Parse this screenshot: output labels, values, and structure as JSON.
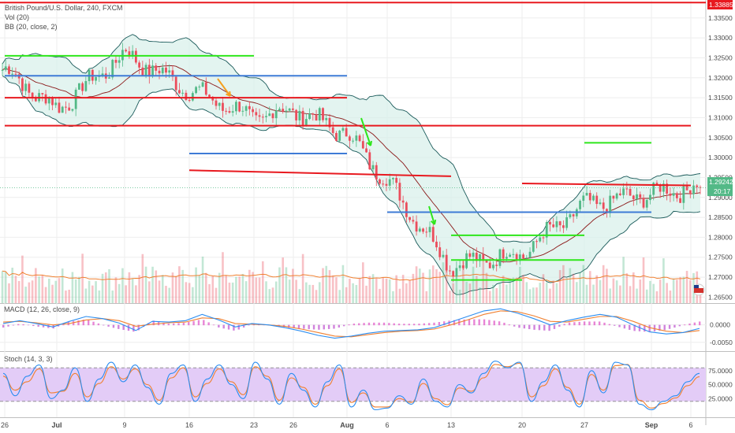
{
  "header": {
    "title": "British Pound/U.S. Dollar, 240, FXCM",
    "vol": "Vol (20)",
    "bb": "BB (20, close, 2)"
  },
  "macd_label": "MACD (12, 26, close, 9)",
  "stoch_label": "Stoch (14, 3, 3)",
  "price_tag": "1.29242",
  "time_tag": "20:17",
  "top_tag": "1.33885",
  "colors": {
    "up": "#53b987",
    "down": "#eb4d5c",
    "bb": "#1a5a5a",
    "bbfill": "#d7f0ea",
    "red_line": "#e8191f",
    "green_line": "#2ee61b",
    "blue_line": "#3e7bd6",
    "orange_arrow": "#f5a020",
    "green_arrow": "#2ee61b",
    "macd": "#2b8df0",
    "signal": "#f08030",
    "stoch_fill": "#e3ccf7",
    "grid": "#eeeeee"
  },
  "chart_data": [
    {
      "type": "candlestick",
      "title": "British Pound/U.S. Dollar, 240, FXCM",
      "x_labels": [
        "26",
        "Jul",
        "9",
        "16",
        "23",
        "26",
        "Aug",
        "6",
        "13",
        "20",
        "27",
        "Sep",
        "6"
      ],
      "y_ticks": [
        "1.33500",
        "1.33000",
        "1.32500",
        "1.32000",
        "1.31500",
        "1.31000",
        "1.30500",
        "1.30000",
        "1.29500",
        "1.29000",
        "1.28500",
        "1.28000",
        "1.27500",
        "1.27000",
        "1.26500"
      ],
      "ylim": [
        1.2635,
        1.3395
      ],
      "last_price": 1.29242,
      "horizontal_lines": [
        {
          "color": "red",
          "y": 1.33885
        },
        {
          "color": "green",
          "y": 1.3255,
          "x_from": "26",
          "x_to": "23"
        },
        {
          "color": "red",
          "y": 1.315,
          "x_from": "26",
          "x_to": "Aug"
        },
        {
          "color": "red",
          "y": 1.308,
          "x_from": "26",
          "x_to": "6"
        },
        {
          "color": "blue",
          "y": 1.3205,
          "x_from": "26",
          "x_to": "Aug"
        },
        {
          "color": "blue",
          "y": 1.301,
          "x_from": "16",
          "x_to": "Aug"
        },
        {
          "color": "red",
          "y": 1.2968,
          "x_from": "16",
          "x_to": "13",
          "y_end": 1.2953
        },
        {
          "color": "blue",
          "y": 1.2863,
          "x_from": "6",
          "x_to": "Sep"
        },
        {
          "color": "green",
          "y": 1.2805,
          "x_from": "13",
          "x_to": "27"
        },
        {
          "color": "green",
          "y": 1.2743,
          "x_from": "13",
          "x_to": "27"
        },
        {
          "color": "green",
          "y": 1.2693,
          "x_from": "13",
          "x_to": "20"
        },
        {
          "color": "red",
          "y": 1.2935,
          "x_from": "20",
          "x_to": "6",
          "y_end": 1.293
        },
        {
          "color": "green",
          "y": 1.3037,
          "x_from": "27",
          "x_to": "Sep"
        }
      ],
      "segments": [
        {
          "from": "26",
          "close": 1.322,
          "bb_width": 0.012
        },
        {
          "from": "Jul",
          "close": 1.312,
          "bb_width": 0.012
        },
        {
          "from": "9",
          "close": 1.326,
          "bb_width": 0.014
        },
        {
          "from": "16",
          "close": 1.317,
          "bb_width": 0.012
        },
        {
          "from": "23",
          "close": 1.31,
          "bb_width": 0.01
        },
        {
          "from": "26",
          "close": 1.312,
          "bb_width": 0.008
        },
        {
          "from": "Aug",
          "close": 1.306,
          "bb_width": 0.01
        },
        {
          "from": "6",
          "close": 1.294,
          "bb_width": 0.012
        },
        {
          "from": "13",
          "close": 1.273,
          "bb_width": 0.01
        },
        {
          "from": "20",
          "close": 1.276,
          "bb_width": 0.012
        },
        {
          "from": "27",
          "close": 1.288,
          "bb_width": 0.012
        },
        {
          "from": "Sep",
          "close": 1.291,
          "bb_width": 0.014
        },
        {
          "from": "6",
          "close": 1.2924,
          "bb_width": 0.014
        }
      ]
    },
    {
      "type": "line",
      "title": "MACD (12, 26, close, 9)",
      "y_ticks": [
        "0.0000",
        "-0.0050"
      ],
      "ylim": [
        -0.0075,
        0.006
      ],
      "series": [
        {
          "values": [
            0.0004,
            0.0012,
            0.0004,
            -0.0006,
            0.001,
            0.0024,
            0.0018,
            0.0005,
            -0.0016,
            0.001,
            0.0008,
            0.0012,
            0.003,
            0.0014,
            -0.0006,
            0.0004,
            0.0,
            -0.0008,
            -0.0018,
            -0.003,
            -0.0038,
            -0.0032,
            -0.0024,
            -0.0018,
            -0.0016,
            -0.0014,
            -0.0008,
            0.0008,
            0.0024,
            0.004,
            0.0046,
            0.0034,
            0.0018,
            0.0,
            0.0012,
            0.0022,
            0.003,
            0.0022,
            0.0,
            -0.002,
            -0.0026,
            -0.0022,
            -0.001
          ]
        },
        {
          "values": [
            0.0008,
            0.001,
            0.0006,
            0.0,
            0.0004,
            0.0014,
            0.0018,
            0.0012,
            -0.0004,
            0.0002,
            0.0006,
            0.0008,
            0.002,
            0.0018,
            0.0004,
            0.0002,
            0.0,
            -0.0004,
            -0.0012,
            -0.0022,
            -0.0032,
            -0.0034,
            -0.0028,
            -0.0022,
            -0.0018,
            -0.0016,
            -0.0012,
            0.0,
            0.0014,
            0.003,
            0.004,
            0.0038,
            0.0026,
            0.001,
            0.0008,
            0.0016,
            0.0024,
            0.0024,
            0.001,
            -0.0008,
            -0.0018,
            -0.0022,
            -0.0016
          ]
        }
      ]
    },
    {
      "type": "line",
      "title": "Stoch (14, 3, 3)",
      "y_ticks": [
        "75.0000",
        "50.0000",
        "25.0000"
      ],
      "ylim": [
        0,
        100
      ],
      "bands": [
        20,
        80
      ],
      "series": [
        {
          "values": [
            70,
            30,
            65,
            85,
            25,
            40,
            80,
            20,
            60,
            90,
            55,
            85,
            45,
            15,
            70,
            85,
            20,
            60,
            85,
            50,
            25,
            90,
            60,
            15,
            70,
            40,
            10,
            55,
            85,
            10,
            40,
            5,
            8,
            30,
            15,
            60,
            20,
            10,
            50,
            35,
            70,
            92,
            80,
            90,
            20,
            55,
            85,
            40,
            10,
            75,
            35,
            90,
            85,
            15,
            5,
            20,
            30,
            55,
            70
          ]
        },
        {
          "values": [
            65,
            40,
            55,
            78,
            35,
            38,
            70,
            28,
            52,
            82,
            60,
            78,
            50,
            22,
            62,
            80,
            28,
            52,
            78,
            55,
            32,
            82,
            65,
            22,
            62,
            45,
            15,
            48,
            78,
            18,
            35,
            10,
            10,
            25,
            18,
            52,
            25,
            14,
            44,
            38,
            62,
            86,
            82,
            88,
            28,
            48,
            78,
            45,
            15,
            68,
            40,
            84,
            86,
            22,
            8,
            16,
            26,
            48,
            64
          ]
        }
      ]
    }
  ]
}
